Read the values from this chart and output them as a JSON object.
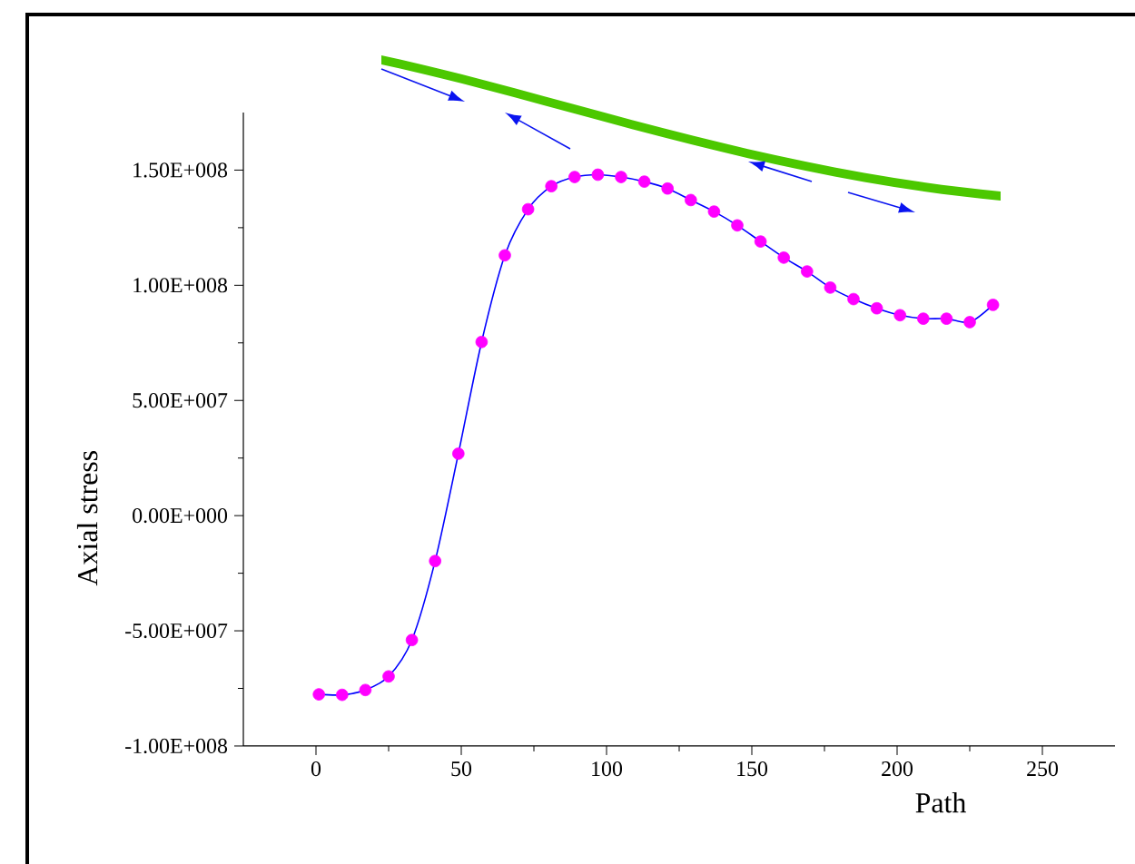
{
  "chart_data": {
    "type": "line",
    "xlabel": "Path",
    "ylabel": "Axial stress",
    "xlim": [
      -25,
      275
    ],
    "xticks": [
      0,
      50,
      100,
      150,
      200,
      250
    ],
    "ylim": [
      -100000000,
      175000000
    ],
    "yticks": [
      {
        "value": -100000000,
        "label": "-1.00E+008"
      },
      {
        "value": -50000000,
        "label": "-5.00E+007"
      },
      {
        "value": 0,
        "label": "0.00E+000"
      },
      {
        "value": 50000000,
        "label": "5.00E+007"
      },
      {
        "value": 100000000,
        "label": "1.00E+008"
      },
      {
        "value": 150000000,
        "label": "1.50E+008"
      }
    ],
    "marker": "circle",
    "line_style": "solid",
    "grid": false,
    "series": [
      {
        "color": "#0000ff",
        "colors": [
          "#ff00ff",
          "#ff00ff",
          "#ff00ff",
          "#ff00ff",
          "#ff00ff",
          "#ff00ff",
          "#ff00ff",
          "#ff00ff",
          "#ff00ff",
          "#ff00ff",
          "#ff00ff",
          "#ff00ff",
          "#ff00ff",
          "#ff00ff",
          "#ff00ff",
          "#ff00ff",
          "#ff00ff",
          "#ff00ff",
          "#ff00ff",
          "#ff00ff",
          "#ff00ff",
          "#ff00ff",
          "#ff00ff",
          "#ff00ff",
          "#ff00ff",
          "#ff00ff",
          "#ff00ff",
          "#ff00ff",
          "#ff00ff",
          "#ff00ff"
        ],
        "x": [
          1,
          9,
          17,
          25,
          33,
          41,
          49,
          57,
          65,
          73,
          81,
          89,
          97,
          105,
          113,
          121,
          129,
          137,
          145,
          153,
          161,
          169,
          177,
          185,
          193,
          201,
          209,
          217,
          225,
          233
        ],
        "values": [
          -77600000,
          -77800000,
          -75700000,
          -69800000,
          -54000000,
          -19700000,
          26900000,
          75400000,
          113000000,
          133000000,
          143000000,
          147000000,
          148000000,
          147000000,
          145000000,
          142000000,
          137000000,
          132000000,
          126000000,
          119000000,
          112000000,
          106000000,
          99000000,
          94000000,
          90000000,
          87000000,
          85500000,
          85500000,
          84000000,
          91500000
        ]
      }
    ]
  }
}
